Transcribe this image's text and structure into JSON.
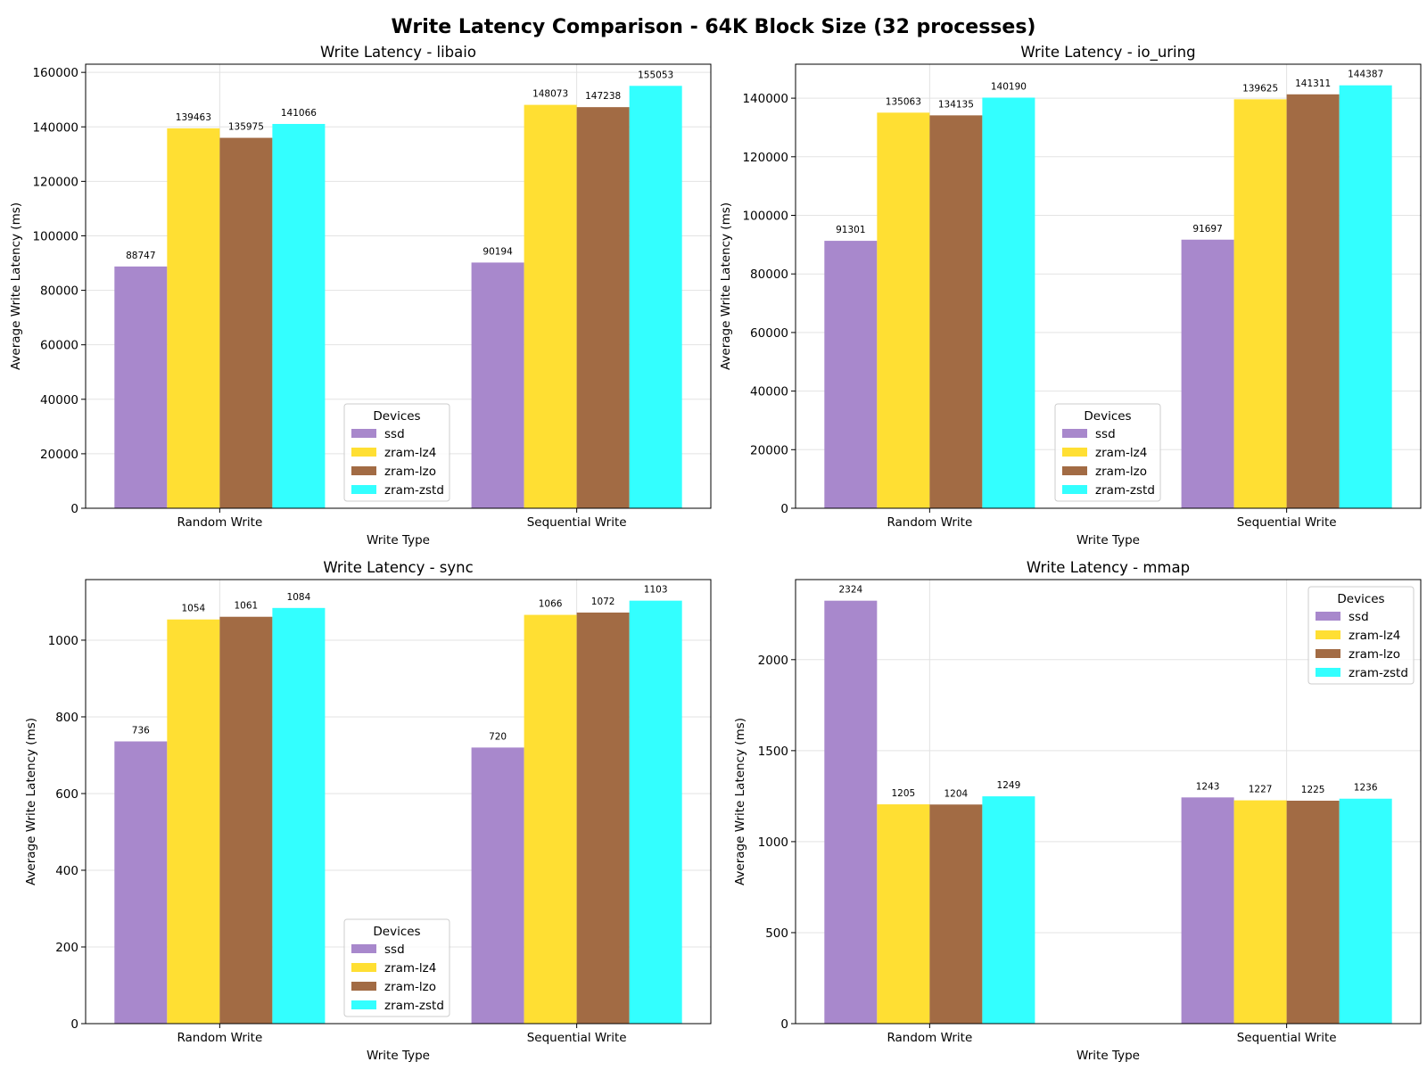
{
  "suptitle": "Write Latency Comparison - 64K Block Size (32 processes)",
  "legend_title": "Devices",
  "colors": {
    "ssd": "#a888cc",
    "zram-lz4": "#ffdf33",
    "zram-lzo": "#a26b44",
    "zram-zstd": "#33ffff"
  },
  "chart_data": [
    {
      "type": "bar",
      "title": "Write Latency - libaio",
      "xlabel": "Write Type",
      "ylabel": "Average Write Latency (ms)",
      "categories": [
        "Random Write",
        "Sequential Write"
      ],
      "ylim": [
        0,
        163000
      ],
      "yticks": [
        0,
        20000,
        40000,
        60000,
        80000,
        100000,
        120000,
        140000,
        160000
      ],
      "grid": true,
      "legend": "lower-center",
      "series": [
        {
          "name": "ssd",
          "values": [
            88747,
            90194
          ]
        },
        {
          "name": "zram-lz4",
          "values": [
            139463,
            148073
          ]
        },
        {
          "name": "zram-lzo",
          "values": [
            135975,
            147238
          ]
        },
        {
          "name": "zram-zstd",
          "values": [
            141066,
            155053
          ]
        }
      ]
    },
    {
      "type": "bar",
      "title": "Write Latency - io_uring",
      "xlabel": "Write Type",
      "ylabel": "Average Write Latency (ms)",
      "categories": [
        "Random Write",
        "Sequential Write"
      ],
      "ylim": [
        0,
        151600
      ],
      "yticks": [
        0,
        20000,
        40000,
        60000,
        80000,
        100000,
        120000,
        140000
      ],
      "grid": true,
      "legend": "lower-center",
      "series": [
        {
          "name": "ssd",
          "values": [
            91301,
            91697
          ]
        },
        {
          "name": "zram-lz4",
          "values": [
            135063,
            139625
          ]
        },
        {
          "name": "zram-lzo",
          "values": [
            134135,
            141311
          ]
        },
        {
          "name": "zram-zstd",
          "values": [
            140190,
            144387
          ]
        }
      ]
    },
    {
      "type": "bar",
      "title": "Write Latency - sync",
      "xlabel": "Write Type",
      "ylabel": "Average Write Latency (ms)",
      "categories": [
        "Random Write",
        "Sequential Write"
      ],
      "ylim": [
        0,
        1158
      ],
      "yticks": [
        0,
        200,
        400,
        600,
        800,
        1000
      ],
      "grid": true,
      "legend": "lower-center",
      "series": [
        {
          "name": "ssd",
          "values": [
            736,
            720
          ]
        },
        {
          "name": "zram-lz4",
          "values": [
            1054,
            1066
          ]
        },
        {
          "name": "zram-lzo",
          "values": [
            1061,
            1072
          ]
        },
        {
          "name": "zram-zstd",
          "values": [
            1084,
            1103
          ]
        }
      ]
    },
    {
      "type": "bar",
      "title": "Write Latency - mmap",
      "xlabel": "Write Type",
      "ylabel": "Average Write Latency (ms)",
      "categories": [
        "Random Write",
        "Sequential Write"
      ],
      "ylim": [
        0,
        2440
      ],
      "yticks": [
        0,
        500,
        1000,
        1500,
        2000
      ],
      "grid": true,
      "legend": "top-right",
      "series": [
        {
          "name": "ssd",
          "values": [
            2324,
            1243
          ]
        },
        {
          "name": "zram-lz4",
          "values": [
            1205,
            1227
          ]
        },
        {
          "name": "zram-lzo",
          "values": [
            1204,
            1225
          ]
        },
        {
          "name": "zram-zstd",
          "values": [
            1249,
            1236
          ]
        }
      ]
    }
  ]
}
